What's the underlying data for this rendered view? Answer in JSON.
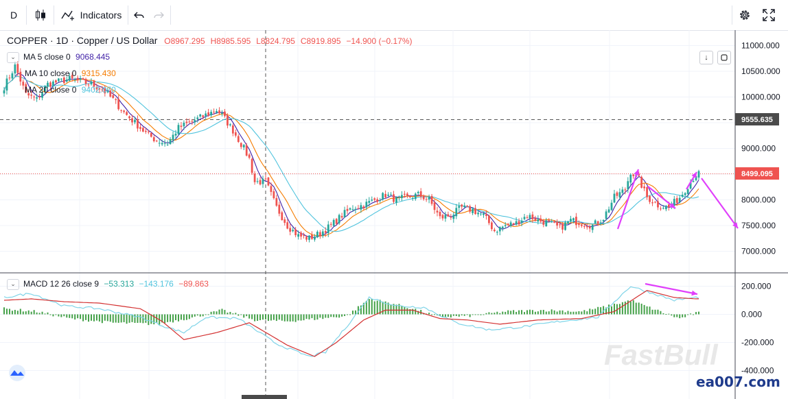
{
  "toolbar": {
    "interval": "D",
    "indicators_label": "Indicators"
  },
  "symbol": {
    "title": "COPPER · 1D · Copper / US Dollar",
    "open": "O8967.295",
    "high": "H8985.595",
    "low": "L8824.795",
    "close": "C8919.895",
    "change": "−14.900 (−0.17%)"
  },
  "ma_legend": [
    {
      "label": "MA 5 close 0",
      "value": "9068.445",
      "color": "#3f1fa6"
    },
    {
      "label": "MA 10 close 0",
      "value": "9315.430",
      "color": "#f57c00"
    },
    {
      "label": "MA 20 close 0",
      "value": "9402.070",
      "color": "#4fc3dd"
    }
  ],
  "macd_legend": {
    "label": "MACD 12 26 close 9",
    "hist": "−53.313",
    "macd": "−143.176",
    "signal": "−89.863"
  },
  "price_labels": {
    "crosshair": "9555.635",
    "last": "8499.095"
  },
  "watermark": "FastBull",
  "site_mark": "ea007.com",
  "colors": {
    "up": "#26a69a",
    "down": "#ef5350",
    "ma5": "#3f1fa6",
    "ma10": "#f57c00",
    "ma20": "#4fc3dd",
    "annotation": "#e040fb",
    "macd_line": "#7fd4e8",
    "signal_line": "#d32f2f",
    "hist": "#43a047"
  },
  "chart_data": [
    {
      "type": "candlestick",
      "title": "COPPER · 1D · Copper / US Dollar",
      "y_ticks": [
        11000,
        10500,
        10000,
        9500,
        9000,
        8500,
        8000,
        7500,
        7000
      ],
      "y_tick_labels": [
        "11000.000",
        "10500.000",
        "10000.000",
        "9500.000",
        "9000.000",
        "8500.000",
        "8000.000",
        "7500.000",
        "7000.000"
      ],
      "ylim": [
        6700,
        11250
      ],
      "grid": true,
      "close_path": [
        [
          0,
          10200
        ],
        [
          4,
          10600
        ],
        [
          8,
          10050
        ],
        [
          12,
          9950
        ],
        [
          16,
          10250
        ],
        [
          20,
          10300
        ],
        [
          24,
          10350
        ],
        [
          28,
          10300
        ],
        [
          32,
          10250
        ],
        [
          36,
          10150
        ],
        [
          40,
          9950
        ],
        [
          44,
          9700
        ],
        [
          48,
          9500
        ],
        [
          52,
          9300
        ],
        [
          56,
          9150
        ],
        [
          60,
          9100
        ],
        [
          64,
          9400
        ],
        [
          68,
          9500
        ],
        [
          72,
          9600
        ],
        [
          76,
          9700
        ],
        [
          78,
          9750
        ],
        [
          80,
          9650
        ],
        [
          84,
          9350
        ],
        [
          88,
          9000
        ],
        [
          90,
          8800
        ],
        [
          92,
          8350
        ],
        [
          96,
          8350
        ],
        [
          100,
          7850
        ],
        [
          104,
          7500
        ],
        [
          108,
          7300
        ],
        [
          112,
          7250
        ],
        [
          116,
          7350
        ],
        [
          120,
          7500
        ],
        [
          124,
          7700
        ],
        [
          128,
          7850
        ],
        [
          132,
          7900
        ],
        [
          136,
          8000
        ],
        [
          140,
          8100
        ],
        [
          144,
          8000
        ],
        [
          148,
          8050
        ],
        [
          152,
          8100
        ],
        [
          156,
          8000
        ],
        [
          160,
          7650
        ],
        [
          164,
          7700
        ],
        [
          168,
          7850
        ],
        [
          172,
          7800
        ],
        [
          176,
          7700
        ],
        [
          180,
          7400
        ],
        [
          184,
          7500
        ],
        [
          188,
          7550
        ],
        [
          192,
          7700
        ],
        [
          196,
          7600
        ],
        [
          200,
          7550
        ],
        [
          204,
          7450
        ],
        [
          208,
          7600
        ],
        [
          212,
          7550
        ],
        [
          216,
          7500
        ],
        [
          220,
          7650
        ],
        [
          224,
          8050
        ],
        [
          228,
          8200
        ],
        [
          230,
          8550
        ],
        [
          233,
          8400
        ],
        [
          236,
          8050
        ],
        [
          240,
          7900
        ],
        [
          244,
          7850
        ],
        [
          248,
          8050
        ],
        [
          252,
          8350
        ],
        [
          254,
          8500
        ]
      ],
      "ma_smoothing": [
        5,
        10,
        20
      ]
    },
    {
      "type": "line",
      "title": "MACD 12 26 close 9",
      "y_ticks": [
        200,
        0,
        -200,
        -400
      ],
      "y_tick_labels": [
        "200.000",
        "0.000",
        "-200.000",
        "-400.000"
      ],
      "ylim": [
        -470,
        245
      ],
      "series": [
        {
          "role": "macd",
          "points": [
            [
              0,
              120
            ],
            [
              10,
              150
            ],
            [
              22,
              60
            ],
            [
              35,
              40
            ],
            [
              50,
              -20
            ],
            [
              58,
              -80
            ],
            [
              66,
              -130
            ],
            [
              74,
              -20
            ],
            [
              86,
              -30
            ],
            [
              100,
              -210
            ],
            [
              112,
              -300
            ],
            [
              118,
              -270
            ],
            [
              126,
              -80
            ],
            [
              134,
              120
            ],
            [
              144,
              60
            ],
            [
              154,
              50
            ],
            [
              166,
              -60
            ],
            [
              178,
              -110
            ],
            [
              190,
              -90
            ],
            [
              204,
              -50
            ],
            [
              218,
              -20
            ],
            [
              230,
              200
            ],
            [
              238,
              150
            ],
            [
              246,
              100
            ],
            [
              254,
              120
            ]
          ]
        },
        {
          "role": "signal",
          "points": [
            [
              0,
              100
            ],
            [
              10,
              110
            ],
            [
              22,
              90
            ],
            [
              35,
              80
            ],
            [
              50,
              40
            ],
            [
              58,
              -50
            ],
            [
              66,
              -180
            ],
            [
              78,
              -130
            ],
            [
              90,
              -60
            ],
            [
              104,
              -220
            ],
            [
              114,
              -300
            ],
            [
              122,
              -200
            ],
            [
              132,
              -40
            ],
            [
              140,
              30
            ],
            [
              150,
              30
            ],
            [
              160,
              -30
            ],
            [
              170,
              -40
            ],
            [
              182,
              -70
            ],
            [
              196,
              -40
            ],
            [
              212,
              -30
            ],
            [
              224,
              20
            ],
            [
              236,
              170
            ],
            [
              246,
              120
            ],
            [
              254,
              110
            ]
          ]
        },
        {
          "role": "histogram",
          "points": [
            [
              0,
              40
            ],
            [
              12,
              20
            ],
            [
              24,
              -30
            ],
            [
              40,
              -60
            ],
            [
              56,
              -70
            ],
            [
              70,
              -20
            ],
            [
              80,
              30
            ],
            [
              92,
              -40
            ],
            [
              104,
              -50
            ],
            [
              116,
              -30
            ],
            [
              126,
              -10
            ],
            [
              134,
              110
            ],
            [
              142,
              80
            ],
            [
              150,
              40
            ],
            [
              160,
              -20
            ],
            [
              172,
              -10
            ],
            [
              184,
              20
            ],
            [
              198,
              30
            ],
            [
              212,
              20
            ],
            [
              222,
              60
            ],
            [
              230,
              100
            ],
            [
              238,
              40
            ],
            [
              248,
              -30
            ],
            [
              254,
              10
            ]
          ]
        }
      ]
    }
  ]
}
